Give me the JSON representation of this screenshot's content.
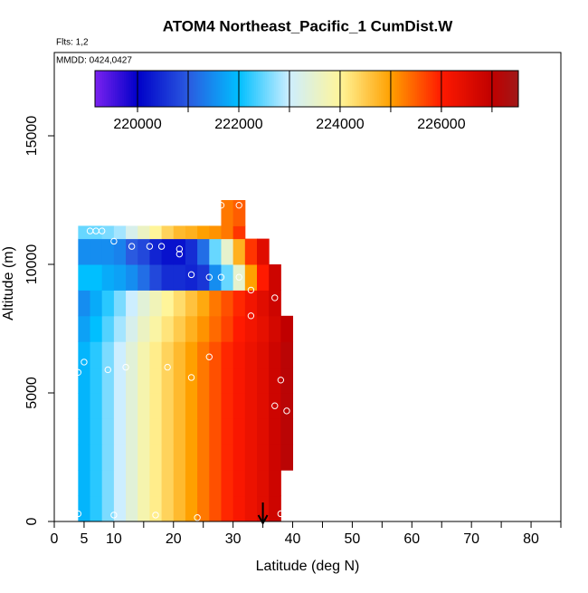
{
  "chart_data": {
    "type": "heatmap",
    "title": "ATOM4 Northeast_Pacific_1 CumDist.W",
    "annotations": [
      "Flts: 1,2",
      "MMDD: 0424,0427"
    ],
    "xlabel": "Latitude (deg N)",
    "ylabel": "Altitude (m)",
    "xlim": [
      0,
      85
    ],
    "ylim": [
      0,
      18240
    ],
    "xticks": [
      0,
      5,
      10,
      20,
      30,
      40,
      50,
      60,
      70,
      80
    ],
    "xminorticks": [
      15,
      25,
      35,
      45,
      55,
      65,
      75,
      85
    ],
    "yticks": [
      0,
      5000,
      10000,
      15000
    ],
    "colorbar_lim": [
      219160,
      227520
    ],
    "colorbar_ticks": [
      220000,
      222000,
      224000,
      226000
    ],
    "colorbar_breaks": [
      220000,
      221000,
      222000,
      223000,
      224000,
      225000,
      226000,
      227000
    ],
    "colorscale": [
      [
        219160,
        "#7b22f0"
      ],
      [
        220000,
        "#0000c8"
      ],
      [
        221000,
        "#2a5ae0"
      ],
      [
        222000,
        "#00bfff"
      ],
      [
        223000,
        "#cdeeff"
      ],
      [
        224000,
        "#fff59a"
      ],
      [
        225000,
        "#ffa000"
      ],
      [
        226000,
        "#ff1a00"
      ],
      [
        227000,
        "#c00000"
      ],
      [
        227520,
        "#a01818"
      ]
    ],
    "x_edges": [
      4,
      6,
      8,
      10,
      12,
      14,
      16,
      18,
      20,
      22,
      24,
      26,
      28,
      30,
      32,
      34,
      36,
      38,
      40
    ],
    "y_edges": [
      0,
      1000,
      2000,
      3000,
      4000,
      5000,
      6000,
      7000,
      8000,
      9000,
      10000,
      11000,
      11500,
      12500
    ],
    "z": [
      [
        221900,
        222200,
        222600,
        223000,
        223400,
        223800,
        224100,
        224400,
        224700,
        225000,
        225300,
        225600,
        225900,
        226100,
        226300,
        226500,
        226800,
        null
      ],
      [
        221900,
        222200,
        222600,
        223000,
        223400,
        223800,
        224100,
        224400,
        224700,
        225000,
        225300,
        225600,
        225900,
        226100,
        226300,
        226500,
        226800,
        null
      ],
      [
        221900,
        222200,
        222600,
        223000,
        223400,
        223800,
        224100,
        224400,
        224700,
        225000,
        225300,
        225600,
        225900,
        226100,
        226300,
        226500,
        226800,
        227100
      ],
      [
        221900,
        222200,
        222600,
        223000,
        223400,
        223800,
        224100,
        224400,
        224700,
        225000,
        225300,
        225600,
        225900,
        226100,
        226300,
        226500,
        226800,
        227100
      ],
      [
        221900,
        222200,
        222600,
        223000,
        223400,
        223800,
        224100,
        224400,
        224700,
        225000,
        225300,
        225600,
        225900,
        226100,
        226300,
        226500,
        226800,
        227100
      ],
      [
        221900,
        222200,
        222600,
        223000,
        223400,
        223800,
        224100,
        224400,
        224700,
        225000,
        225300,
        225600,
        225900,
        226100,
        226300,
        226500,
        226800,
        227100
      ],
      [
        221900,
        222200,
        222600,
        223000,
        223400,
        223800,
        224100,
        224400,
        224700,
        225000,
        225300,
        225600,
        225900,
        226100,
        226300,
        226500,
        226800,
        227100
      ],
      [
        221700,
        222000,
        222400,
        222800,
        223200,
        223600,
        223900,
        224200,
        224500,
        224800,
        225100,
        225400,
        225700,
        226000,
        226200,
        226400,
        226700,
        227000
      ],
      [
        221500,
        221800,
        222200,
        222600,
        223000,
        223400,
        223700,
        224000,
        224300,
        224600,
        224900,
        225300,
        225600,
        225900,
        226200,
        226500,
        226800,
        null
      ],
      [
        222000,
        222000,
        221800,
        221700,
        221500,
        221200,
        220800,
        220500,
        220500,
        220400,
        220600,
        221500,
        222500,
        223500,
        225000,
        226000,
        226800,
        null
      ],
      [
        221500,
        221500,
        221500,
        221400,
        221000,
        220800,
        220400,
        220200,
        220200,
        220500,
        221200,
        222500,
        223500,
        224800,
        225800,
        226500,
        null,
        null
      ],
      [
        222500,
        222500,
        222600,
        222800,
        223200,
        223600,
        224000,
        224400,
        224700,
        224800,
        225000,
        225100,
        225300,
        225800,
        null,
        null,
        null,
        null
      ],
      [
        null,
        null,
        null,
        null,
        null,
        null,
        null,
        null,
        null,
        null,
        null,
        null,
        225300,
        225500,
        null,
        null,
        null,
        null
      ]
    ],
    "points": {
      "x": [
        4,
        10,
        17,
        24,
        38,
        4,
        5,
        9,
        12,
        19,
        23,
        26,
        37,
        38,
        39,
        33,
        37,
        33,
        23,
        26,
        28,
        31,
        13,
        16,
        18,
        21,
        21,
        10,
        6,
        7,
        8,
        28,
        31
      ],
      "y": [
        300,
        250,
        250,
        150,
        300,
        5800,
        6200,
        5900,
        6000,
        6000,
        5600,
        6400,
        4500,
        5500,
        4300,
        8000,
        8700,
        9000,
        9600,
        9500,
        9500,
        9500,
        10700,
        10700,
        10700,
        10400,
        10600,
        10900,
        11300,
        11300,
        11300,
        12300,
        12300
      ]
    },
    "arrow_latitude": 35
  }
}
